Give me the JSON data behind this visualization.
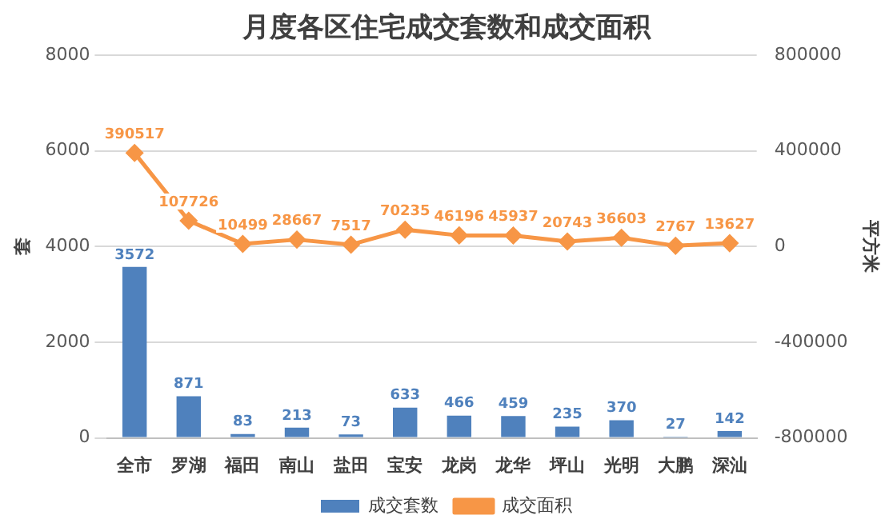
{
  "chart_data": {
    "type": "bar",
    "title": "月度各区住宅成交套数和成交面积",
    "ylabel": "套",
    "y2label": "平方米",
    "categories": [
      "全市",
      "罗湖",
      "福田",
      "南山",
      "盐田",
      "宝安",
      "龙岗",
      "龙华",
      "坪山",
      "光明",
      "大鹏",
      "深汕"
    ],
    "series": [
      {
        "name": "成交套数",
        "color": "#4f81bd",
        "values": [
          3572,
          871,
          83,
          213,
          73,
          633,
          466,
          459,
          235,
          370,
          27,
          142
        ]
      },
      {
        "name": "成交面积",
        "type": "line",
        "axis": "y2",
        "color": "#f79646",
        "marker": "diamond",
        "values": [
          390517,
          107726,
          10499,
          28667,
          7517,
          70235,
          46196,
          45937,
          20743,
          36603,
          2767,
          13627
        ]
      }
    ],
    "ylim": [
      0,
      8000
    ],
    "yticks": [
      0,
      2000,
      4000,
      6000,
      8000
    ],
    "y2lim": [
      -800000,
      800000
    ],
    "y2ticks": [
      -800000,
      -400000,
      0,
      400000,
      800000
    ],
    "grid": "y",
    "legend": "bottom",
    "data_labels": true
  }
}
